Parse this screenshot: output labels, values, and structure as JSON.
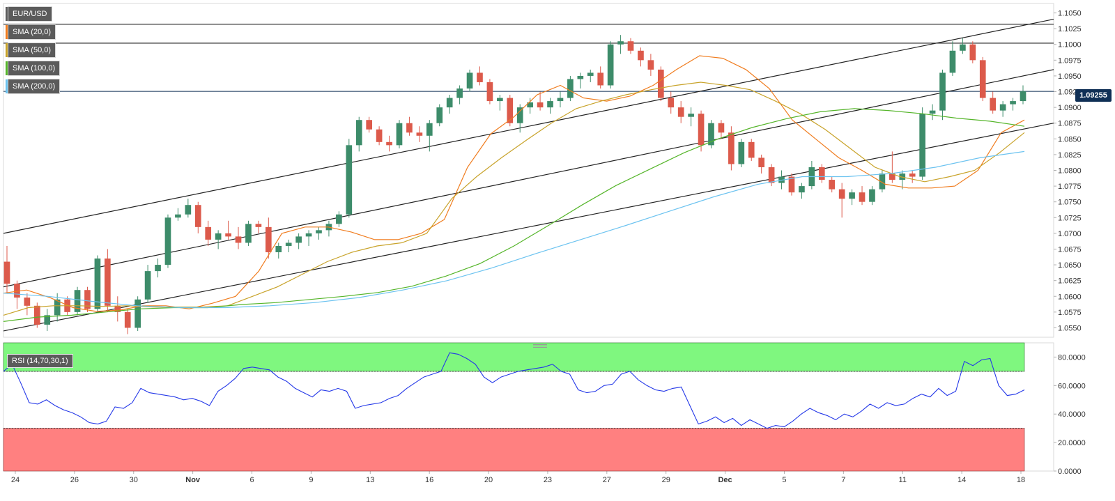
{
  "chart_data": {
    "type": "candlestick",
    "symbol": "EUR/USD",
    "main_panel": {
      "y_ticks": [
        "1.1050",
        "1.1025",
        "1.1000",
        "1.0975",
        "1.0950",
        "1.0925",
        "1.0900",
        "1.0875",
        "1.0850",
        "1.0825",
        "1.0800",
        "1.0775",
        "1.0750",
        "1.0725",
        "1.0700",
        "1.0675",
        "1.0650",
        "1.0625",
        "1.0600",
        "1.0575",
        "1.0550"
      ],
      "ylim": [
        1.0535,
        1.1065
      ],
      "last_price": "1.09255",
      "horizontal_levels": [
        1.1032,
        1.1002,
        1.09255
      ],
      "trend_channel": [
        {
          "start": 1.07,
          "end": 1.104
        },
        {
          "start": 1.0615,
          "end": 1.096
        },
        {
          "start": 1.0545,
          "end": 1.0875
        }
      ],
      "indicators": [
        {
          "name": "SMA (20,0)",
          "color": "#f07c1e",
          "values": [
            1.0605,
            1.061,
            1.0598,
            1.0582,
            1.0576,
            1.0578,
            1.0585,
            1.0585,
            1.058,
            1.0589,
            1.06,
            1.064,
            1.07,
            1.071,
            1.071,
            1.0702,
            1.069,
            1.069,
            1.07,
            1.0722,
            1.0805,
            1.0858,
            1.0885,
            1.092,
            1.0935,
            1.0915,
            1.091,
            1.0918,
            1.0935,
            1.096,
            1.0982,
            1.0978,
            1.096,
            1.093,
            1.088,
            1.085,
            1.082,
            1.08,
            1.0778,
            1.0772,
            1.0772,
            1.0775,
            1.08,
            1.086,
            1.088
          ]
        },
        {
          "name": "SMA (50,0)",
          "color": "#c8a32a",
          "values": [
            1.057,
            1.0582,
            1.0585,
            1.0585,
            1.0584,
            1.0585,
            1.0583,
            1.0583,
            1.0583,
            1.0585,
            1.06,
            1.0615,
            1.0635,
            1.0655,
            1.067,
            1.068,
            1.0685,
            1.07,
            1.0755,
            1.079,
            1.082,
            1.0848,
            1.0875,
            1.0898,
            1.091,
            1.092,
            1.0928,
            1.0935,
            1.094,
            1.0935,
            1.0928,
            1.091,
            1.089,
            1.0865,
            1.0835,
            1.0805,
            1.079,
            1.0782,
            1.079,
            1.08,
            1.0828,
            1.086
          ]
        },
        {
          "name": "SMA (100,0)",
          "color": "#55b52a",
          "values": [
            1.056,
            1.0567,
            1.057,
            1.0575,
            1.058,
            1.0582,
            1.0582,
            1.0587,
            1.059,
            1.0595,
            1.06,
            1.0606,
            1.0616,
            1.0632,
            1.0652,
            1.068,
            1.0712,
            1.0745,
            1.0776,
            1.0802,
            1.0828,
            1.085,
            1.0868,
            1.0882,
            1.0893,
            1.0898,
            1.0895,
            1.089,
            1.0883,
            1.0878,
            1.087
          ]
        },
        {
          "name": "SMA (200,0)",
          "color": "#6cc3f0",
          "values": [
            1.0605,
            1.06,
            1.0592,
            1.0585,
            1.0582,
            1.0582,
            1.0585,
            1.059,
            1.0598,
            1.061,
            1.0625,
            1.0645,
            1.0668,
            1.069,
            1.0712,
            1.0735,
            1.0758,
            1.0778,
            1.079,
            1.079,
            1.0795,
            1.0805,
            1.082,
            1.083
          ]
        }
      ],
      "ohlc": [
        [
          1.0655,
          1.068,
          1.0605,
          1.062
        ],
        [
          1.062,
          1.0625,
          1.058,
          1.0598
        ],
        [
          1.0598,
          1.0605,
          1.057,
          1.0585
        ],
        [
          1.0585,
          1.059,
          1.055,
          1.0555
        ],
        [
          1.0555,
          1.058,
          1.0545,
          1.057
        ],
        [
          1.057,
          1.0605,
          1.056,
          1.0595
        ],
        [
          1.0595,
          1.06,
          1.057,
          1.0575
        ],
        [
          1.0575,
          1.0615,
          1.057,
          1.061
        ],
        [
          1.061,
          1.0615,
          1.0575,
          1.058
        ],
        [
          1.058,
          1.0665,
          1.0575,
          1.066
        ],
        [
          1.066,
          1.0675,
          1.0575,
          1.0585
        ],
        [
          1.0585,
          1.06,
          1.056,
          1.0575
        ],
        [
          1.0575,
          1.058,
          1.054,
          1.055
        ],
        [
          1.055,
          1.06,
          1.0545,
          1.0595
        ],
        [
          1.0595,
          1.065,
          1.059,
          1.064
        ],
        [
          1.064,
          1.066,
          1.063,
          1.065
        ],
        [
          1.065,
          1.073,
          1.0645,
          1.0725
        ],
        [
          1.0725,
          1.074,
          1.072,
          1.073
        ],
        [
          1.073,
          1.0755,
          1.0725,
          1.0745
        ],
        [
          1.0745,
          1.075,
          1.07,
          1.071
        ],
        [
          1.071,
          1.072,
          1.068,
          1.069
        ],
        [
          1.069,
          1.0705,
          1.0675,
          1.07
        ],
        [
          1.07,
          1.072,
          1.069,
          1.0695
        ],
        [
          1.0695,
          1.071,
          1.0675,
          1.0685
        ],
        [
          1.0685,
          1.072,
          1.068,
          1.0715
        ],
        [
          1.0715,
          1.072,
          1.07,
          1.071
        ],
        [
          1.071,
          1.0725,
          1.066,
          1.067
        ],
        [
          1.067,
          1.0685,
          1.066,
          1.068
        ],
        [
          1.068,
          1.069,
          1.067,
          1.0685
        ],
        [
          1.0685,
          1.07,
          1.0675,
          1.0695
        ],
        [
          1.0695,
          1.0705,
          1.068,
          1.07
        ],
        [
          1.07,
          1.071,
          1.069,
          1.0705
        ],
        [
          1.0705,
          1.072,
          1.0695,
          1.0715
        ],
        [
          1.0715,
          1.0735,
          1.071,
          1.073
        ],
        [
          1.073,
          1.085,
          1.0725,
          1.084
        ],
        [
          1.084,
          1.0885,
          1.083,
          1.088
        ],
        [
          1.088,
          1.0885,
          1.086,
          1.0865
        ],
        [
          1.0865,
          1.087,
          1.084,
          1.0845
        ],
        [
          1.0845,
          1.0855,
          1.083,
          1.084
        ],
        [
          1.084,
          1.088,
          1.0835,
          1.0875
        ],
        [
          1.0875,
          1.0885,
          1.0855,
          1.086
        ],
        [
          1.086,
          1.087,
          1.0845,
          1.0855
        ],
        [
          1.0855,
          1.088,
          1.083,
          1.0875
        ],
        [
          1.0875,
          1.0905,
          1.087,
          1.09
        ],
        [
          1.09,
          1.092,
          1.089,
          1.0915
        ],
        [
          1.0915,
          1.0935,
          1.0905,
          1.093
        ],
        [
          1.093,
          1.096,
          1.0925,
          1.0955
        ],
        [
          1.0955,
          1.0965,
          1.0935,
          1.094
        ],
        [
          1.094,
          1.0945,
          1.0905,
          1.091
        ],
        [
          1.091,
          1.092,
          1.0895,
          1.0915
        ],
        [
          1.0915,
          1.092,
          1.087,
          1.0875
        ],
        [
          1.0875,
          1.0905,
          1.086,
          1.09
        ],
        [
          1.09,
          1.0915,
          1.089,
          1.0908
        ],
        [
          1.0908,
          1.0925,
          1.0895,
          1.09
        ],
        [
          1.09,
          1.0915,
          1.089,
          1.091
        ],
        [
          1.091,
          1.0925,
          1.09,
          1.0915
        ],
        [
          1.0915,
          1.095,
          1.091,
          1.0945
        ],
        [
          1.0945,
          1.0955,
          1.093,
          1.095
        ],
        [
          1.095,
          1.096,
          1.094,
          1.0955
        ],
        [
          1.0955,
          1.0965,
          1.093,
          1.0935
        ],
        [
          1.0935,
          1.1005,
          1.093,
          1.1
        ],
        [
          1.1,
          1.1015,
          1.0985,
          1.1005
        ],
        [
          1.1005,
          1.101,
          1.0985,
          1.099
        ],
        [
          1.099,
          1.0995,
          1.0965,
          1.0975
        ],
        [
          1.0975,
          1.0985,
          1.095,
          1.096
        ],
        [
          1.096,
          1.0965,
          1.091,
          1.0915
        ],
        [
          1.0915,
          1.0925,
          1.089,
          1.09
        ],
        [
          1.09,
          1.091,
          1.0875,
          1.0885
        ],
        [
          1.0885,
          1.09,
          1.087,
          1.089
        ],
        [
          1.089,
          1.0895,
          1.083,
          1.084
        ],
        [
          1.084,
          1.088,
          1.0835,
          1.0875
        ],
        [
          1.0875,
          1.088,
          1.085,
          1.086
        ],
        [
          1.086,
          1.087,
          1.08,
          1.081
        ],
        [
          1.081,
          1.085,
          1.0805,
          1.0845
        ],
        [
          1.0845,
          1.085,
          1.0815,
          1.082
        ],
        [
          1.082,
          1.0825,
          1.0795,
          1.0805
        ],
        [
          1.0805,
          1.081,
          1.0775,
          1.078
        ],
        [
          1.078,
          1.08,
          1.077,
          1.079
        ],
        [
          1.079,
          1.0795,
          1.076,
          1.0765
        ],
        [
          1.0765,
          1.078,
          1.0755,
          1.0775
        ],
        [
          1.0775,
          1.0815,
          1.077,
          1.0805
        ],
        [
          1.0805,
          1.081,
          1.078,
          1.0785
        ],
        [
          1.0785,
          1.079,
          1.0765,
          1.077
        ],
        [
          1.077,
          1.078,
          1.0725,
          1.0755
        ],
        [
          1.0755,
          1.077,
          1.0745,
          1.0765
        ],
        [
          1.0765,
          1.0775,
          1.0745,
          1.075
        ],
        [
          1.075,
          1.0775,
          1.0745,
          1.077
        ],
        [
          1.077,
          1.08,
          1.0765,
          1.0795
        ],
        [
          1.0795,
          1.083,
          1.078,
          1.0785
        ],
        [
          1.0785,
          1.08,
          1.077,
          1.0795
        ],
        [
          1.0795,
          1.08,
          1.078,
          1.079
        ],
        [
          1.079,
          1.09,
          1.0785,
          1.089
        ],
        [
          1.089,
          1.0905,
          1.088,
          1.0895
        ],
        [
          1.0895,
          1.096,
          1.088,
          1.0955
        ],
        [
          1.0955,
          1.1005,
          1.095,
          1.099
        ],
        [
          1.099,
          1.101,
          1.0985,
          1.1
        ],
        [
          1.1,
          1.1005,
          1.097,
          1.0975
        ],
        [
          1.0975,
          1.098,
          1.091,
          1.0915
        ],
        [
          1.0915,
          1.0925,
          1.089,
          1.0895
        ],
        [
          1.0895,
          1.091,
          1.0885,
          1.0905
        ],
        [
          1.0905,
          1.0915,
          1.0895,
          1.091
        ],
        [
          1.091,
          1.0935,
          1.0905,
          1.09255
        ]
      ]
    },
    "rsi_panel": {
      "label": "RSI (14,70,30,1)",
      "y_ticks": [
        "80.0000",
        "60.0000",
        "40.0000",
        "20.0000",
        "0.0000"
      ],
      "ylim": [
        0,
        90
      ],
      "overbought": 70,
      "oversold": 30,
      "values": [
        70,
        75,
        62,
        48,
        47,
        50,
        46,
        43,
        41,
        38,
        34,
        33,
        35,
        45,
        44,
        48,
        58,
        55,
        54,
        53,
        52,
        50,
        51,
        49,
        46,
        56,
        60,
        65,
        72,
        73,
        72,
        71,
        66,
        63,
        58,
        55,
        52,
        57,
        56,
        58,
        56,
        44,
        46,
        47,
        48,
        51,
        53,
        58,
        62,
        66,
        68,
        70,
        83,
        82,
        79,
        75,
        66,
        62,
        66,
        68,
        70,
        71,
        72,
        73,
        75,
        70,
        68,
        57,
        55,
        56,
        60,
        61,
        68,
        70,
        64,
        60,
        57,
        56,
        58,
        59,
        46,
        33,
        35,
        38,
        34,
        37,
        32,
        36,
        33,
        30,
        32,
        31,
        35,
        40,
        44,
        41,
        39,
        36,
        40,
        38,
        42,
        47,
        44,
        48,
        46,
        47,
        51,
        54,
        52,
        58,
        53,
        56,
        77,
        74,
        78,
        79,
        60,
        53,
        54,
        57
      ]
    },
    "x_labels": [
      "24",
      "26",
      "30",
      "Nov",
      "6",
      "9",
      "13",
      "16",
      "20",
      "23",
      "27",
      "29",
      "Dec",
      "5",
      "7",
      "11",
      "14",
      "18"
    ],
    "colors": {
      "bull": "#3d8c6a",
      "bear": "#dc5a4b",
      "price_badge": "#0f2f55",
      "rsi_line": "#2438e8",
      "rsi_overbought_zone": "#7ff77f",
      "rsi_oversold_zone": "#ff8080",
      "channel_line": "#222222"
    }
  }
}
